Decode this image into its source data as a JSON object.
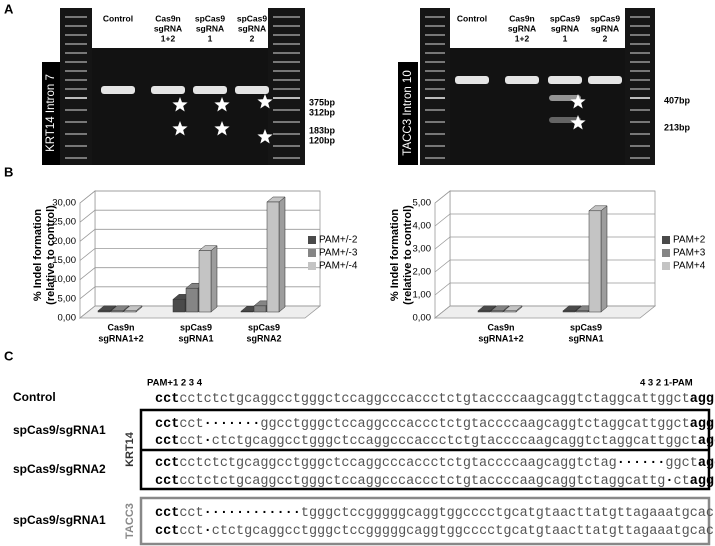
{
  "panel_labels": [
    "A",
    "B",
    "C"
  ],
  "gels": [
    {
      "side_label": "KRT14 Intron 7",
      "lanes": [
        [
          "Control"
        ],
        [
          "Cas9n",
          "sgRNA",
          "1+2"
        ],
        [
          "spCas9",
          "sgRNA",
          "1"
        ],
        [
          "spCas9",
          "sgRNA",
          "2"
        ]
      ],
      "sizes": [
        "375bp",
        "312bp",
        "183bp",
        "120bp"
      ]
    },
    {
      "side_label": "TACC3 Intron 10",
      "lanes": [
        [
          "Control"
        ],
        [
          "Cas9n",
          "sgRNA",
          "1+2"
        ],
        [
          "spCas9",
          "sgRNA",
          "1"
        ],
        [
          "spCas9",
          "sgRNA",
          "2"
        ]
      ],
      "sizes": [
        "407bp",
        "213bp"
      ]
    }
  ],
  "chart_data": [
    {
      "type": "bar",
      "ylabel": [
        "% Indel formation",
        "(relative to control)"
      ],
      "categories": [
        [
          "Cas9n",
          "sgRNA1+2"
        ],
        [
          "spCas9",
          "sgRNA1"
        ],
        [
          "spCas9",
          "sgRNA2"
        ]
      ],
      "series": [
        {
          "name": "PAM+/-2",
          "color": "#4a4a4a",
          "values": [
            0.3,
            3.3,
            0.2
          ]
        },
        {
          "name": "PAM+/-3",
          "color": "#858585",
          "values": [
            0.3,
            6.2,
            1.6
          ]
        },
        {
          "name": "PAM+/-4",
          "color": "#c4c4c4",
          "values": [
            0.3,
            16.0,
            28.7
          ]
        }
      ],
      "ylim": [
        0,
        30
      ],
      "yticks": [
        {
          "value": 0,
          "label": "0,00"
        },
        {
          "value": 5,
          "label": "5,00"
        },
        {
          "value": 10,
          "label": "10,00"
        },
        {
          "value": 15,
          "label": "15,00"
        },
        {
          "value": 20,
          "label": "20,00"
        },
        {
          "value": 25,
          "label": "25,00"
        },
        {
          "value": 30,
          "label": "30,00"
        }
      ],
      "grid": true,
      "legend": "right"
    },
    {
      "type": "bar",
      "ylabel": [
        "% Indel formation",
        "(relative to control)"
      ],
      "categories": [
        [
          "Cas9n",
          "sgRNA1+2"
        ],
        [
          "spCas9",
          "sgRNA1"
        ]
      ],
      "series": [
        {
          "name": "PAM+2",
          "color": "#4a4a4a",
          "values": [
            0.05,
            0.05
          ]
        },
        {
          "name": "PAM+3",
          "color": "#858585",
          "values": [
            0.05,
            0.05
          ]
        },
        {
          "name": "PAM+4",
          "color": "#c4c4c4",
          "values": [
            0.05,
            4.4
          ]
        }
      ],
      "ylim": [
        0,
        5
      ],
      "yticks": [
        {
          "value": 0,
          "label": "0,00"
        },
        {
          "value": 1,
          "label": "1,00"
        },
        {
          "value": 2,
          "label": "2,00"
        },
        {
          "value": 3,
          "label": "3,00"
        },
        {
          "value": 4,
          "label": "4,00"
        },
        {
          "value": 5,
          "label": "5,00"
        }
      ],
      "grid": true,
      "legend": "right"
    }
  ],
  "sequences": {
    "pam_left": "PAM+1 2 3 4",
    "pam_right": "4 3 2 1-PAM",
    "control": {
      "label": "Control",
      "pam5": "cct",
      "body": [
        "cctctctgcaggcctgggctccaggcccaccctctgtaccccaagcaggtctaggcattggct"
      ],
      "pam3": "agg"
    },
    "groups": [
      {
        "gene": "KRT14",
        "samples": [
          {
            "label": "spCas9/sgRNA1",
            "rows": [
              {
                "pam5": "cct",
                "body": [
                  "cct",
                  "·······",
                  "ggcctgggctccaggcccaccctctgtaccccaagcaggtctaggcattggct"
                ],
                "pam3": "agg"
              },
              {
                "pam5": "cct",
                "body": [
                  "cct",
                  "·",
                  "ctctgcaggcctgggctccaggcccaccctctgtaccccaagcaggtctaggcattggct"
                ],
                "pam3": "agg"
              }
            ]
          },
          {
            "label": "spCas9/sgRNA2",
            "rows": [
              {
                "pam5": "cct",
                "body": [
                  "cctctctgcaggcctgggctccaggcccaccctctgtaccccaagcaggtctag",
                  "······",
                  "ggct"
                ],
                "pam3": "agg"
              },
              {
                "pam5": "cct",
                "body": [
                  "cctctctgcaggcctgggctccaggcccaccctctgtaccccaagcaggtctaggcattg",
                  "·",
                  "ct"
                ],
                "pam3": "agg"
              }
            ]
          }
        ]
      },
      {
        "gene": "TACC3",
        "samples": [
          {
            "label": "spCas9/sgRNA1",
            "rows": [
              {
                "pam5": "cct",
                "body": [
                  "cct",
                  "············",
                  "tgggctccgggggcaggtggcccctgcatgtaacttatgttagaaatgcac"
                ]
              },
              {
                "pam5": "cct",
                "body": [
                  "cct",
                  "·",
                  "ctctgcaggcctgggctccgggggcaggtggcccctgcatgtaacttatgttagaaatgcac"
                ]
              }
            ]
          }
        ]
      }
    ]
  }
}
